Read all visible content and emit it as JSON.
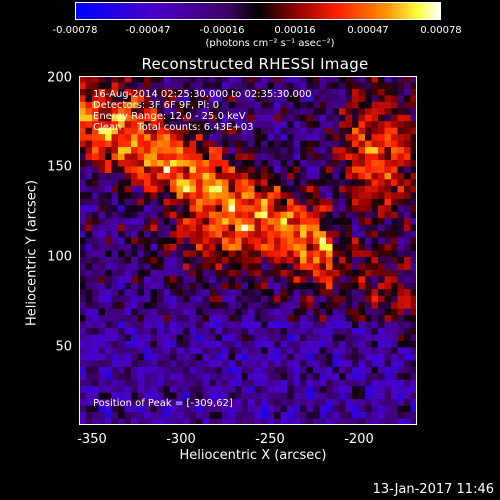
{
  "colorbar": {
    "ticks": [
      "-0.00078",
      "-0.00047",
      "-0.00016",
      "0.00016",
      "0.00047",
      "0.00078"
    ],
    "unit": "(photons cm⁻² s⁻¹ asec⁻²)"
  },
  "chart_data": {
    "type": "heatmap",
    "title": "Reconstructed RHESSI Image",
    "xlabel": "Heliocentric X (arcsec)",
    "ylabel": "Heliocentric Y (arcsec)",
    "xlim": [
      -357,
      -167
    ],
    "ylim": [
      3,
      200
    ],
    "x_ticks": [
      "-350",
      "-300",
      "-250",
      "-200"
    ],
    "y_ticks": [
      "200",
      "150",
      "100",
      "50"
    ],
    "color_range": [
      -0.00078,
      0.00078
    ],
    "colormap": [
      "#0000ff",
      "#000000",
      "#800000",
      "#ff2000",
      "#ff8000",
      "#ffff00",
      "#ffffff"
    ]
  },
  "annotations": {
    "time": "16-Aug-2014 02:25:30.000 to 02:35:30.000",
    "detectors": "Detectors: 3F 6F 9F, Pl: 0",
    "energy": "Energy Range: 12.0 - 25.0 keV",
    "clean": "Clean     Total counts: 6.43E+03",
    "peak": "Position of Peak = [-309,62]"
  },
  "footer": {
    "date": "13-Jan-2017 11:46"
  }
}
